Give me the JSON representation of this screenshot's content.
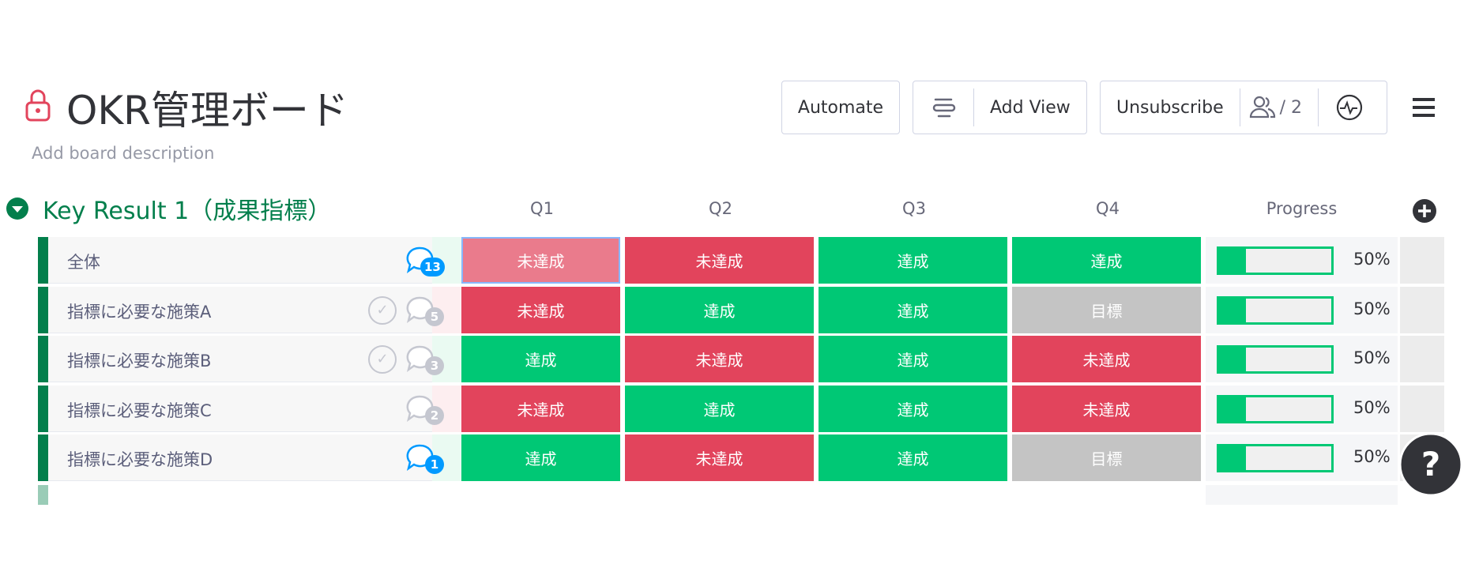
{
  "header": {
    "title": "OKR管理ボード",
    "description": "Add board description"
  },
  "toolbar": {
    "automate": "Automate",
    "add_view": "Add View",
    "unsubscribe": "Unsubscribe",
    "members": "/ 2"
  },
  "group": {
    "title": "Key Result 1（成果指標）",
    "color": "#037f4c",
    "columns": [
      "Q1",
      "Q2",
      "Q3",
      "Q4",
      "Progress"
    ],
    "status_colors": {
      "未達成": "#e2445c",
      "達成": "#00c875",
      "目標": "#c4c4c4"
    },
    "rows": [
      {
        "name": "全体",
        "comments": 13,
        "statuses": [
          "未達成",
          "未達成",
          "達成",
          "達成"
        ],
        "progress": {
          "value": 50,
          "label": "50%"
        }
      },
      {
        "name": "指標に必要な施策A",
        "comments": 5,
        "statuses": [
          "未達成",
          "達成",
          "達成",
          "目標"
        ],
        "progress": {
          "value": 50,
          "label": "50%"
        }
      },
      {
        "name": "指標に必要な施策B",
        "comments": 3,
        "statuses": [
          "達成",
          "未達成",
          "達成",
          "未達成"
        ],
        "progress": {
          "value": 50,
          "label": "50%"
        }
      },
      {
        "name": "指標に必要な施策C",
        "comments": 2,
        "statuses": [
          "未達成",
          "達成",
          "達成",
          "未達成"
        ],
        "progress": {
          "value": 50,
          "label": "50%"
        }
      },
      {
        "name": "指標に必要な施策D",
        "comments": 1,
        "statuses": [
          "達成",
          "未達成",
          "達成",
          "目標"
        ],
        "progress": {
          "value": 50,
          "label": "50%"
        }
      }
    ]
  }
}
